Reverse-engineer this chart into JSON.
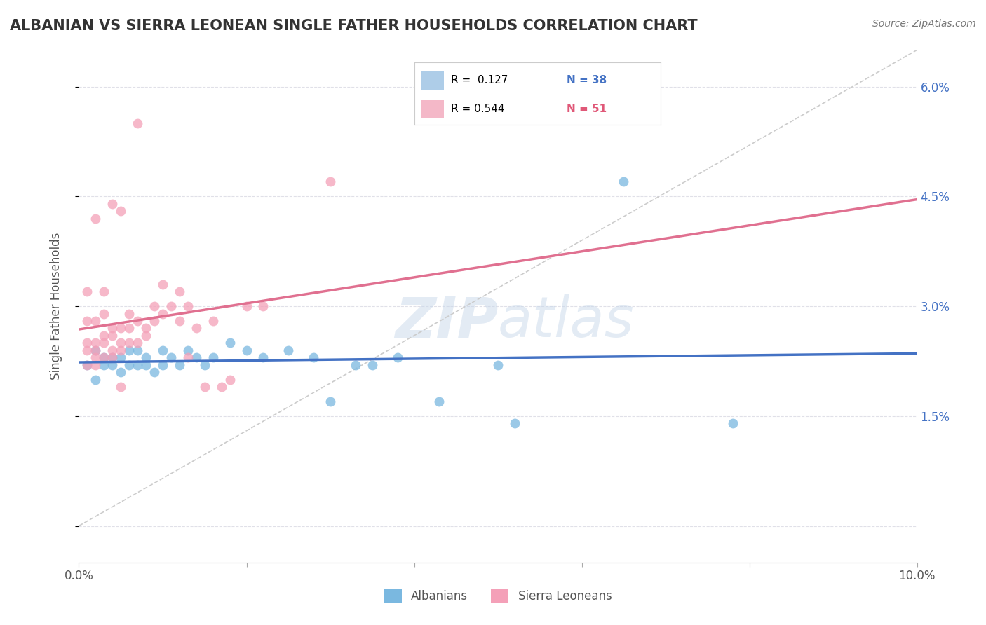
{
  "title": "ALBANIAN VS SIERRA LEONEAN SINGLE FATHER HOUSEHOLDS CORRELATION CHART",
  "source": "Source: ZipAtlas.com",
  "ylabel": "Single Father Households",
  "watermark": "ZIPatlas",
  "xlim": [
    0.0,
    0.1
  ],
  "ylim": [
    -0.005,
    0.065
  ],
  "plot_ylim": [
    -0.005,
    0.065
  ],
  "xticks": [
    0.0,
    0.02,
    0.04,
    0.06,
    0.08,
    0.1
  ],
  "xtick_labels": [
    "0.0%",
    "",
    "",
    "",
    "",
    "10.0%"
  ],
  "yticks": [
    0.0,
    0.015,
    0.03,
    0.045,
    0.06
  ],
  "ytick_labels_right": [
    "",
    "1.5%",
    "3.0%",
    "4.5%",
    "6.0%"
  ],
  "albanian_color": "#7ab8e0",
  "sierralone_color": "#f4a0b8",
  "albanian_line_color": "#4472c4",
  "sierralone_line_color": "#e07090",
  "background_color": "#ffffff",
  "grid_color": "#e0e0e8",
  "title_color": "#333333",
  "ref_line_color": "#cccccc",
  "albanian_scatter": [
    [
      0.001,
      0.022
    ],
    [
      0.002,
      0.02
    ],
    [
      0.002,
      0.024
    ],
    [
      0.003,
      0.022
    ],
    [
      0.003,
      0.023
    ],
    [
      0.004,
      0.022
    ],
    [
      0.004,
      0.023
    ],
    [
      0.005,
      0.021
    ],
    [
      0.005,
      0.023
    ],
    [
      0.006,
      0.022
    ],
    [
      0.006,
      0.024
    ],
    [
      0.007,
      0.022
    ],
    [
      0.007,
      0.024
    ],
    [
      0.008,
      0.023
    ],
    [
      0.008,
      0.022
    ],
    [
      0.009,
      0.021
    ],
    [
      0.01,
      0.022
    ],
    [
      0.01,
      0.024
    ],
    [
      0.011,
      0.023
    ],
    [
      0.012,
      0.022
    ],
    [
      0.013,
      0.024
    ],
    [
      0.014,
      0.023
    ],
    [
      0.015,
      0.022
    ],
    [
      0.016,
      0.023
    ],
    [
      0.018,
      0.025
    ],
    [
      0.02,
      0.024
    ],
    [
      0.022,
      0.023
    ],
    [
      0.025,
      0.024
    ],
    [
      0.028,
      0.023
    ],
    [
      0.03,
      0.017
    ],
    [
      0.033,
      0.022
    ],
    [
      0.035,
      0.022
    ],
    [
      0.038,
      0.023
    ],
    [
      0.043,
      0.017
    ],
    [
      0.05,
      0.022
    ],
    [
      0.052,
      0.014
    ],
    [
      0.065,
      0.047
    ],
    [
      0.078,
      0.014
    ]
  ],
  "sierralone_scatter": [
    [
      0.001,
      0.022
    ],
    [
      0.001,
      0.024
    ],
    [
      0.001,
      0.025
    ],
    [
      0.001,
      0.028
    ],
    [
      0.001,
      0.032
    ],
    [
      0.002,
      0.022
    ],
    [
      0.002,
      0.023
    ],
    [
      0.002,
      0.024
    ],
    [
      0.002,
      0.025
    ],
    [
      0.002,
      0.028
    ],
    [
      0.003,
      0.023
    ],
    [
      0.003,
      0.025
    ],
    [
      0.003,
      0.026
    ],
    [
      0.003,
      0.029
    ],
    [
      0.003,
      0.032
    ],
    [
      0.004,
      0.023
    ],
    [
      0.004,
      0.024
    ],
    [
      0.004,
      0.026
    ],
    [
      0.004,
      0.027
    ],
    [
      0.005,
      0.024
    ],
    [
      0.005,
      0.025
    ],
    [
      0.005,
      0.027
    ],
    [
      0.005,
      0.019
    ],
    [
      0.006,
      0.025
    ],
    [
      0.006,
      0.027
    ],
    [
      0.006,
      0.029
    ],
    [
      0.007,
      0.025
    ],
    [
      0.007,
      0.028
    ],
    [
      0.008,
      0.026
    ],
    [
      0.008,
      0.027
    ],
    [
      0.009,
      0.028
    ],
    [
      0.009,
      0.03
    ],
    [
      0.01,
      0.029
    ],
    [
      0.01,
      0.033
    ],
    [
      0.011,
      0.03
    ],
    [
      0.012,
      0.028
    ],
    [
      0.012,
      0.032
    ],
    [
      0.013,
      0.023
    ],
    [
      0.013,
      0.03
    ],
    [
      0.014,
      0.027
    ],
    [
      0.015,
      0.019
    ],
    [
      0.016,
      0.028
    ],
    [
      0.017,
      0.019
    ],
    [
      0.018,
      0.02
    ],
    [
      0.02,
      0.03
    ],
    [
      0.022,
      0.03
    ],
    [
      0.002,
      0.042
    ],
    [
      0.004,
      0.044
    ],
    [
      0.005,
      0.043
    ],
    [
      0.007,
      0.055
    ],
    [
      0.03,
      0.047
    ]
  ]
}
